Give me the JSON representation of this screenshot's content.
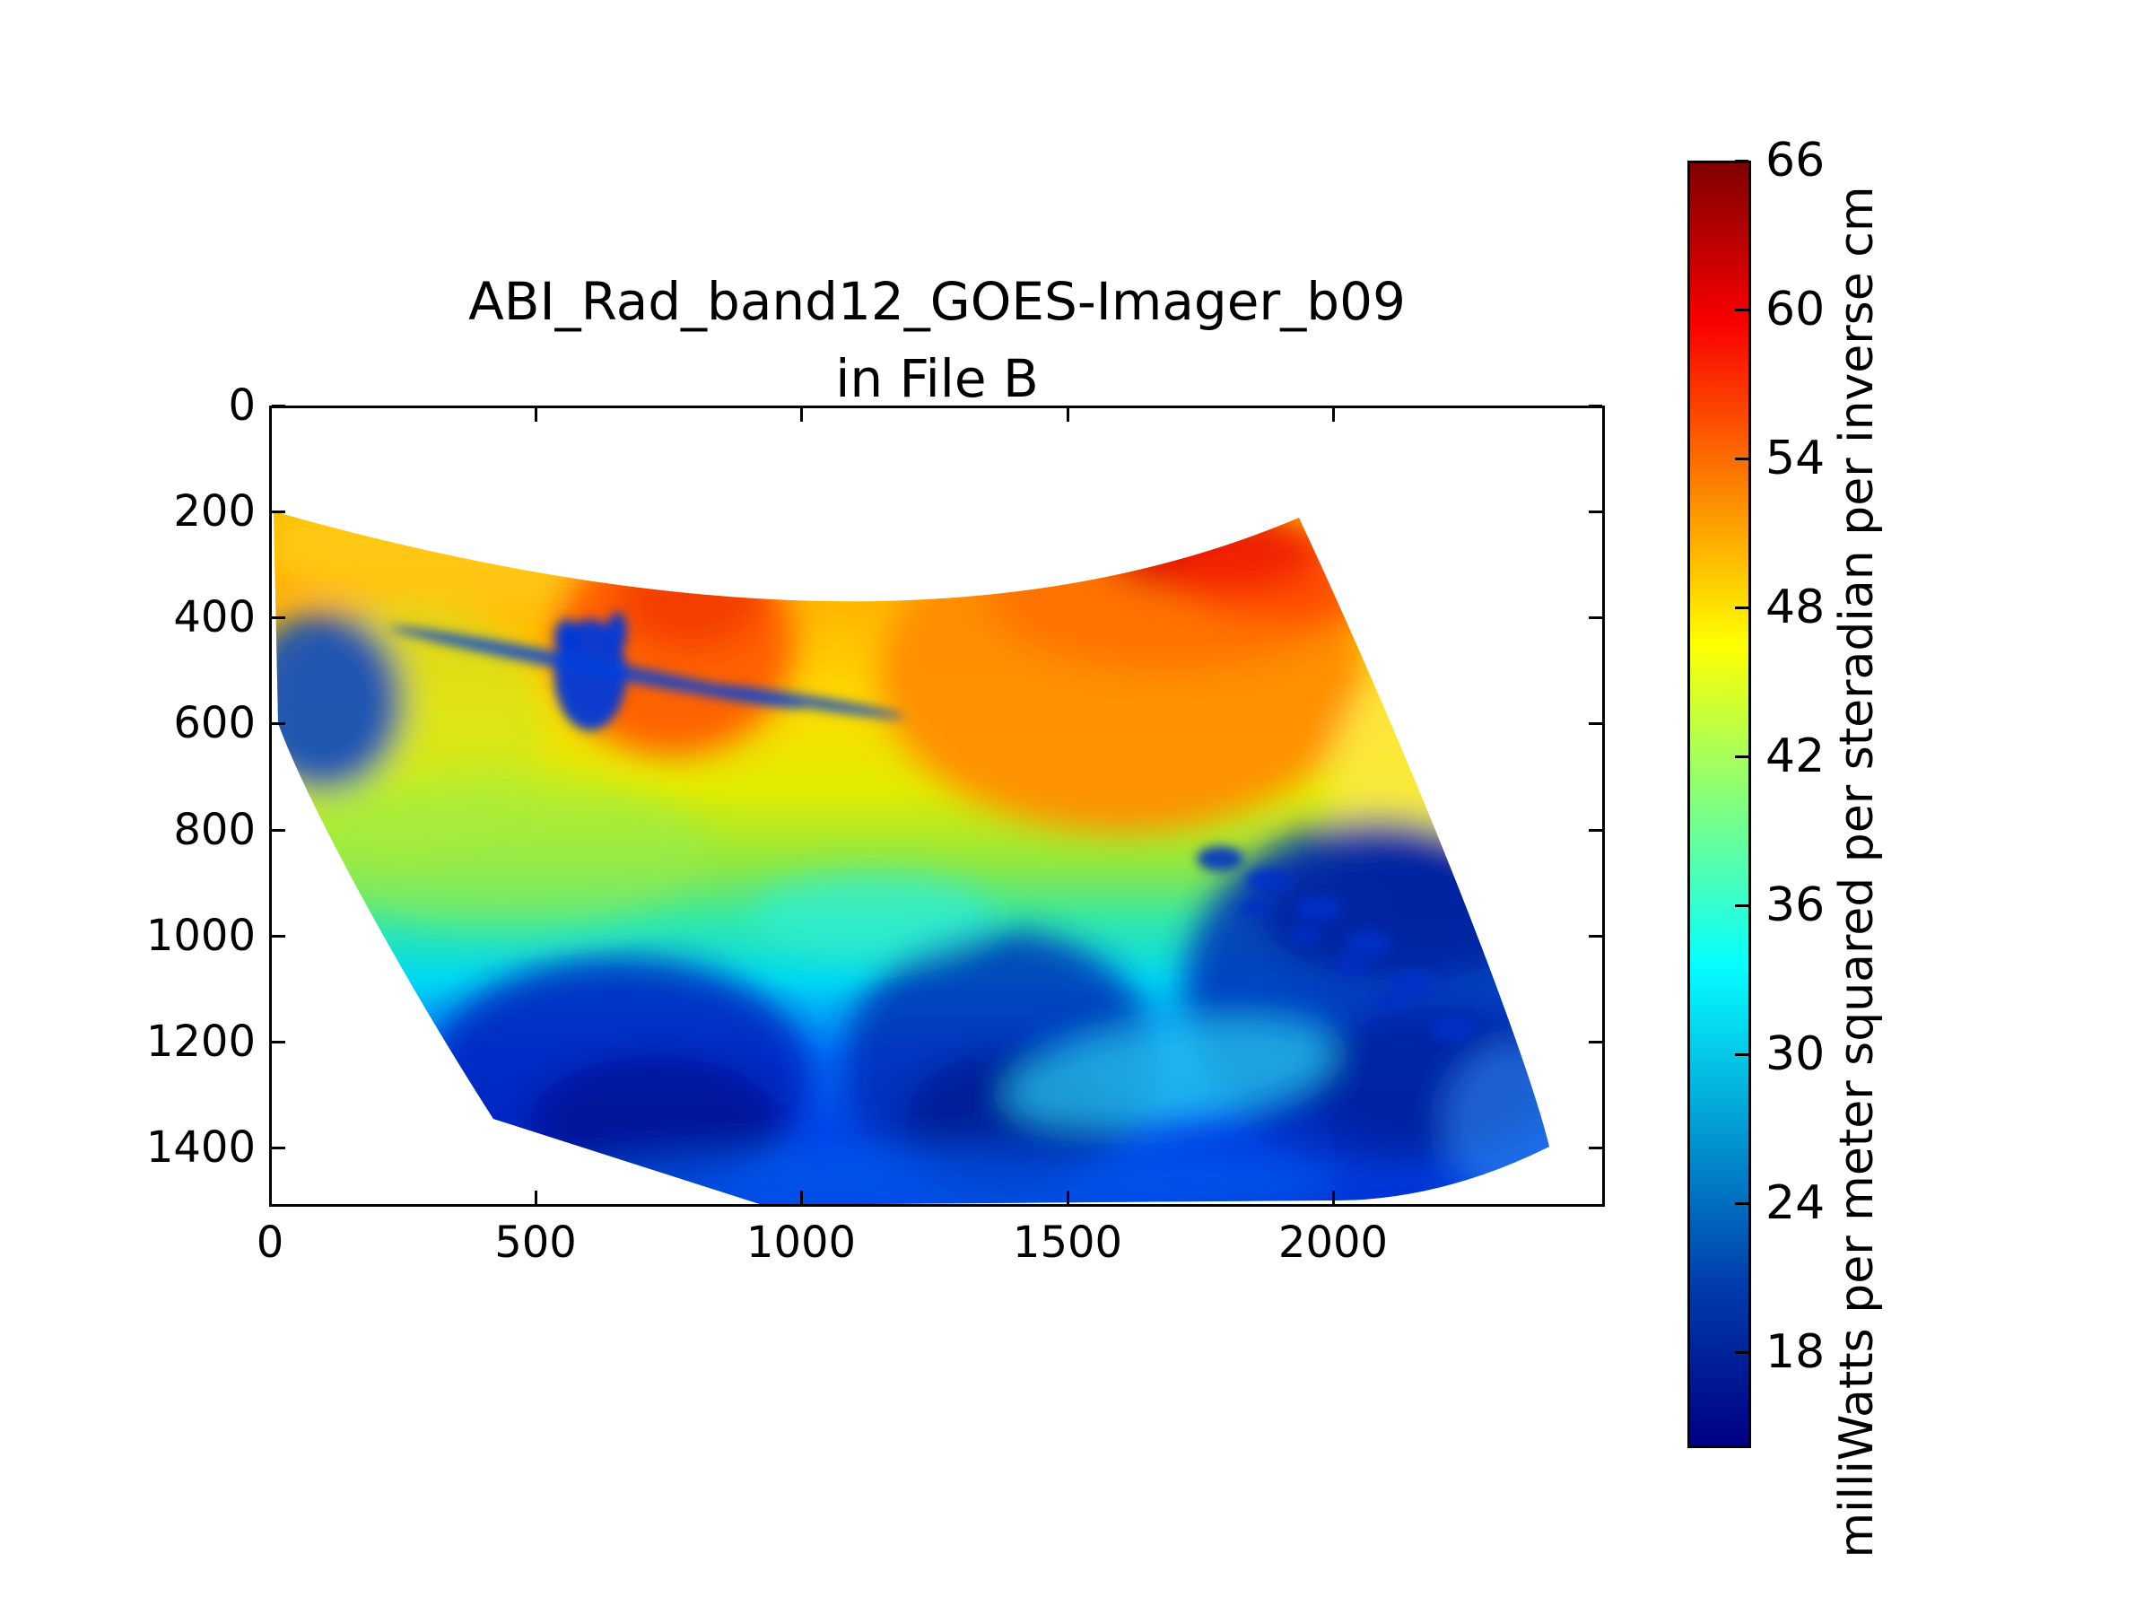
{
  "figure": {
    "title_line1": "ABI_Rad_band12_GOES-Imager_b09",
    "title_line2": "in File B"
  },
  "x_axis": {
    "tick_values": [
      0,
      500,
      1000,
      1500,
      2000
    ],
    "tick_labels": [
      "0",
      "500",
      "1000",
      "1500",
      "2000"
    ]
  },
  "y_axis": {
    "tick_values": [
      0,
      200,
      400,
      600,
      800,
      1000,
      1200,
      1400
    ],
    "tick_labels": [
      "0",
      "200",
      "400",
      "600",
      "800",
      "1000",
      "1200",
      "1400"
    ]
  },
  "colorbar": {
    "tick_values": [
      66,
      60,
      54,
      48,
      42,
      36,
      30,
      24,
      18
    ],
    "tick_labels": [
      "66",
      "60",
      "54",
      "48",
      "42",
      "36",
      "30",
      "24",
      "18"
    ],
    "label": "milliWatts per meter squared per steradian per inverse cm",
    "colormap": "jet",
    "jet_colors": [
      "#000083",
      "#003CAA",
      "#05FFFF",
      "#FFFF00",
      "#FA0000",
      "#800000"
    ],
    "value_range": [
      14,
      66
    ]
  },
  "chart_data": {
    "type": "heatmap",
    "title": "ABI_Rad_band12_GOES-Imager_b09 in File B",
    "xlabel": "",
    "ylabel": "",
    "x_ticks": [
      0,
      500,
      1000,
      1500,
      2000
    ],
    "y_ticks": [
      0,
      200,
      400,
      600,
      800,
      1000,
      1200,
      1400
    ],
    "xlim": [
      0,
      2512
    ],
    "ylim": [
      1512,
      0
    ],
    "grid": false,
    "legend": "colorbar right",
    "colorbar": {
      "label": "milliWatts per meter squared per steradian per inverse cm",
      "ticks": [
        66,
        60,
        54,
        48,
        42,
        36,
        30,
        24,
        18
      ],
      "cmap": "jet",
      "vmin": 14,
      "vmax": 66
    },
    "swath_outline_data_coords": [
      [
        8,
        199
      ],
      [
        1075,
        365
      ],
      [
        1938,
        211
      ],
      [
        2409,
        1390
      ],
      [
        1992,
        1500
      ],
      [
        925,
        1505
      ],
      [
        420,
        1342
      ],
      [
        97,
        598
      ]
    ],
    "regions": [
      {
        "area": "top edge band (y~200-400)",
        "value": "46-56 (yellow-orange)"
      },
      {
        "area": "upper-middle column x~520-990, y~250-650",
        "value": "54-60 (orange-red)"
      },
      {
        "area": "top-right blob x~1560-1980, y~200-350",
        "value": "58-62 (red)"
      },
      {
        "area": "right upper region x~1150-1950, y~250-800",
        "value": "50-56 (orange)"
      },
      {
        "area": "jagged cloud x~530-680, y~400-620",
        "value": "20-26 (dark blue)"
      },
      {
        "area": "thin streak from (220,415) to (1010,570)",
        "value": "22-28 (blue)"
      },
      {
        "area": "left wedge x~0-250, y~400-700",
        "value": "20-26 (dark blue)"
      },
      {
        "area": "mid band y~650-950",
        "value": "36-44 (green-yellow)"
      },
      {
        "area": "cyan band y~950-1100",
        "value": "28-34 (cyan)"
      },
      {
        "area": "bottom-left mass x~300-1050, y~1020-1480",
        "value": "16-24 (navy/blue)"
      },
      {
        "area": "bottom-center mass x~1080-1670, y~960-1500",
        "value": "16-24 (navy/blue)"
      },
      {
        "area": "bottom-right mass x~1740-2410, y~760-1420 with scalloped wave clouds",
        "value": "16-26 (navy/blue)"
      }
    ]
  }
}
